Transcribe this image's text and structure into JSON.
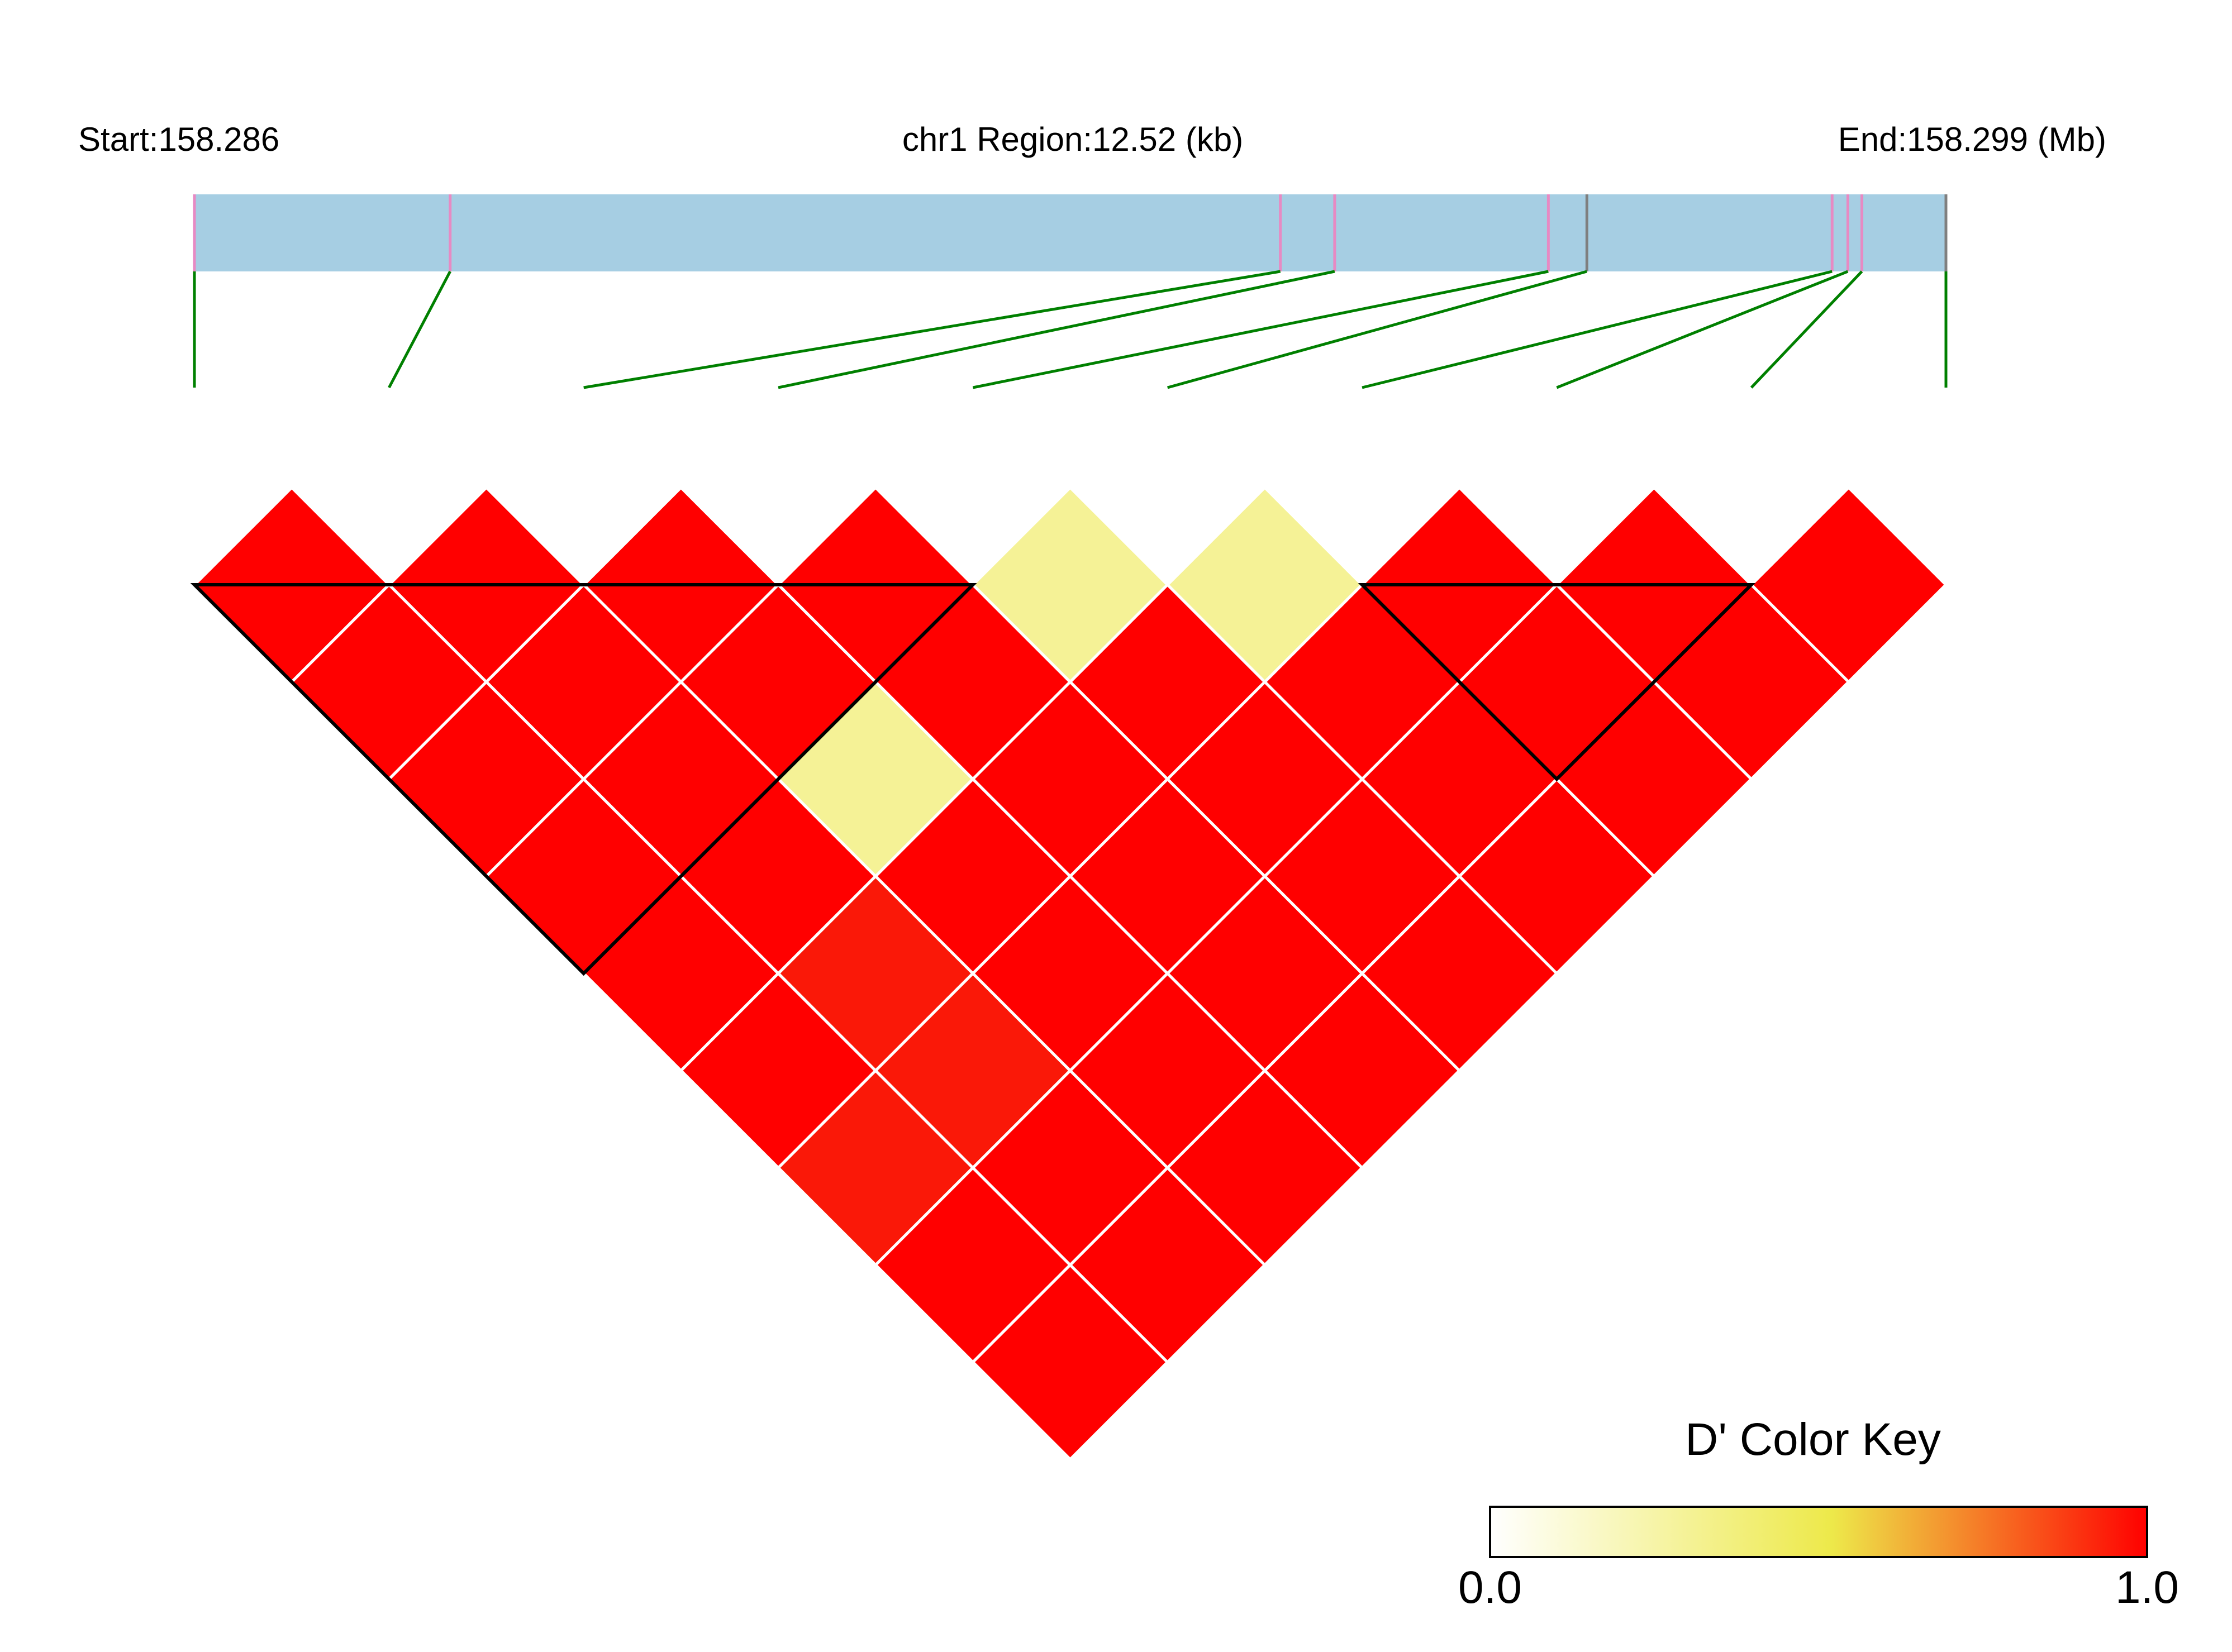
{
  "header": {
    "start_label": "Start:158.286",
    "region_label": "chr1 Region:12.52 (kb)",
    "end_label": "End:158.299 (Mb)"
  },
  "colors": {
    "track_fill": "#a6cee3",
    "snp_tick": "#e78ac3",
    "snp_tick_alt": "#7f7f7f",
    "connector": "#008000",
    "high_ld": "#ff0000",
    "high_ld_partial": "#fa1808",
    "low_ld": "#f5f296",
    "grid_line": "#ffffff",
    "block_outline": "#000000"
  },
  "key": {
    "title": "D' Color Key",
    "min_label": "0.0",
    "max_label": "1.0"
  },
  "chart_data": {
    "type": "heatmap",
    "title": "",
    "region": {
      "chrom": "chr1",
      "start_mb": 158.286,
      "end_mb": 158.299,
      "length_kb": 12.52
    },
    "snp_positions_fraction": [
      0.0,
      0.146,
      0.62,
      0.651,
      0.773,
      0.795,
      0.935,
      0.944,
      0.952,
      1.0
    ],
    "snp_tick_style": [
      "pink",
      "pink",
      "pink",
      "pink",
      "pink",
      "gray",
      "pink",
      "pink",
      "pink",
      "gray"
    ],
    "snp_count": 10,
    "metric": "D'",
    "dprime_matrix": [
      [
        null,
        1,
        1,
        1,
        1,
        1,
        1,
        0.95,
        1,
        1
      ],
      [
        null,
        null,
        1,
        1,
        1,
        1,
        0.95,
        0.95,
        1,
        1
      ],
      [
        null,
        null,
        null,
        1,
        1,
        0.35,
        1,
        1,
        1,
        1
      ],
      [
        null,
        null,
        null,
        null,
        1,
        1,
        1,
        1,
        1,
        1
      ],
      [
        null,
        null,
        null,
        null,
        null,
        0.35,
        1,
        1,
        1,
        1
      ],
      [
        null,
        null,
        null,
        null,
        null,
        null,
        0.35,
        1,
        1,
        1
      ],
      [
        null,
        null,
        null,
        null,
        null,
        null,
        null,
        1,
        1,
        1
      ],
      [
        null,
        null,
        null,
        null,
        null,
        null,
        null,
        null,
        1,
        1
      ],
      [
        null,
        null,
        null,
        null,
        null,
        null,
        null,
        null,
        null,
        1
      ],
      [
        null,
        null,
        null,
        null,
        null,
        null,
        null,
        null,
        null,
        null
      ]
    ],
    "ld_blocks": [
      {
        "first_snp": 1,
        "last_snp": 5
      },
      {
        "first_snp": 7,
        "last_snp": 9
      }
    ],
    "color_key": {
      "min": 0.0,
      "max": 1.0,
      "colors": [
        "#ffffff",
        "#ede94a",
        "#ff0000"
      ]
    }
  }
}
